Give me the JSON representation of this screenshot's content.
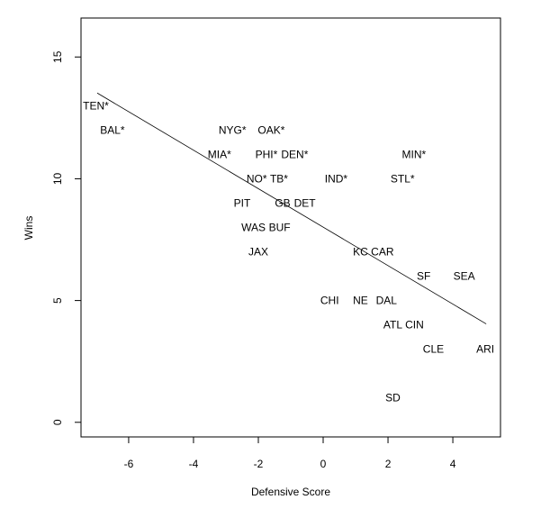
{
  "chart_data": {
    "type": "scatter",
    "title": "",
    "xlabel": "Defensive Score",
    "ylabel": "Wins",
    "xlim": [
      -7.47,
      5.47
    ],
    "ylim": [
      -0.6,
      16.6
    ],
    "xticks": [
      -6,
      -4,
      -2,
      0,
      2,
      4
    ],
    "yticks": [
      0,
      5,
      10,
      15
    ],
    "grid": false,
    "marker": "text labels",
    "points": [
      {
        "label": "TEN*",
        "x": -7.4,
        "y": 13
      },
      {
        "label": "BAL*",
        "x": -6.5,
        "y": 12
      },
      {
        "label": "NYG*",
        "x": -2.8,
        "y": 12
      },
      {
        "label": "OAK*",
        "x": -1.6,
        "y": 12
      },
      {
        "label": "MIA*",
        "x": -3.2,
        "y": 11
      },
      {
        "label": "PHI*",
        "x": -1.75,
        "y": 11
      },
      {
        "label": "DEN*",
        "x": -1.1,
        "y": 11
      },
      {
        "label": "MIN*",
        "x": 2.8,
        "y": 11
      },
      {
        "label": "NO*",
        "x": -2.05,
        "y": 10
      },
      {
        "label": "TB*",
        "x": -1.75,
        "y": 10
      },
      {
        "label": "IND*",
        "x": 0.4,
        "y": 10
      },
      {
        "label": "STL*",
        "x": 2.45,
        "y": 10
      },
      {
        "label": "PIT",
        "x": -2.5,
        "y": 9
      },
      {
        "label": "GB",
        "x": -1.25,
        "y": 9
      },
      {
        "label": "DET",
        "x": -0.9,
        "y": 9
      },
      {
        "label": "WAS",
        "x": -2.15,
        "y": 8
      },
      {
        "label": "BUF",
        "x": -1.9,
        "y": 8
      },
      {
        "label": "JAX",
        "x": -2.0,
        "y": 7
      },
      {
        "label": "KC",
        "x": 1.15,
        "y": 7
      },
      {
        "label": "CAR",
        "x": 1.55,
        "y": 7
      },
      {
        "label": "SF",
        "x": 3.1,
        "y": 6
      },
      {
        "label": "SEA",
        "x": 4.35,
        "y": 6
      },
      {
        "label": "CHI",
        "x": 0.2,
        "y": 5
      },
      {
        "label": "NE",
        "x": 1.15,
        "y": 5
      },
      {
        "label": "DAL",
        "x": 1.95,
        "y": 5
      },
      {
        "label": "ATL",
        "x": 2.15,
        "y": 4
      },
      {
        "label": "CIN",
        "x": 2.65,
        "y": 4
      },
      {
        "label": "CLE",
        "x": 3.4,
        "y": 3
      },
      {
        "label": "ARI",
        "x": 5.0,
        "y": 3
      },
      {
        "label": "SD",
        "x": 2.15,
        "y": 1
      }
    ],
    "fit_line": {
      "x": [
        -6.97,
        5.03
      ],
      "y": [
        13.52,
        4.04
      ]
    }
  }
}
